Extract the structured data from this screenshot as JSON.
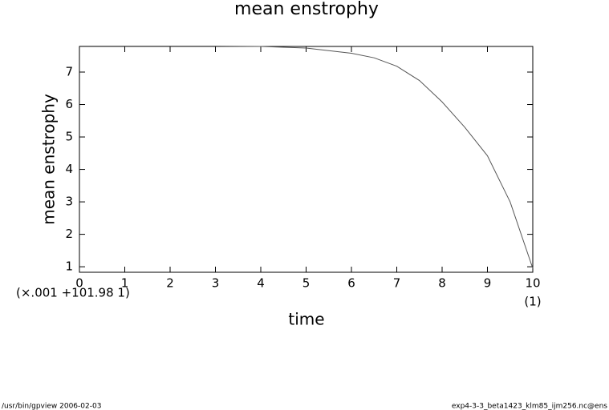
{
  "chart_data": {
    "type": "line",
    "title": "mean enstrophy",
    "y_label": "mean enstrophy",
    "x_label": "time",
    "y_scale_note": "(×.001  +101.98  1)",
    "x_unit_note": "(1)",
    "x": [
      0,
      1,
      2,
      3,
      4,
      5,
      6,
      6.5,
      7,
      7.5,
      8,
      8.5,
      9,
      9.5,
      10
    ],
    "series": [
      {
        "color": "#555555",
        "values": [
          7.8,
          7.8,
          7.8,
          7.8,
          7.79,
          7.74,
          7.58,
          7.44,
          7.18,
          6.74,
          6.08,
          5.3,
          4.42,
          3.0,
          0.95
        ]
      }
    ],
    "xlim": [
      0,
      10
    ],
    "ylim": [
      0.83,
      7.79
    ],
    "xticks": [
      0,
      1,
      2,
      3,
      4,
      5,
      6,
      7,
      8,
      9,
      10
    ],
    "yticks": [
      1,
      2,
      3,
      4,
      5,
      6,
      7
    ]
  },
  "footer": {
    "left": "/usr/bin/gpview   2006-02-03",
    "right": "exp4-3-3_beta1423_klm85_ijm256.nc@ens"
  }
}
